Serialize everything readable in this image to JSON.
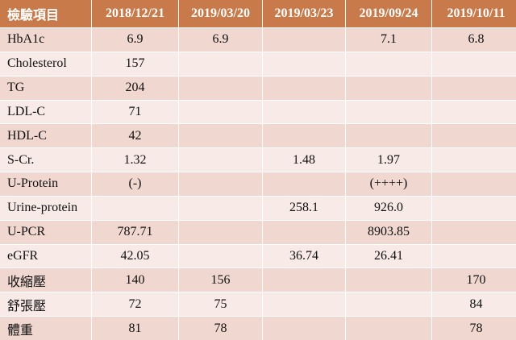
{
  "table": {
    "headers": [
      "檢驗項目",
      "2018/12/21",
      "2019/03/20",
      "2019/03/23",
      "2019/09/24",
      "2019/10/11"
    ],
    "rows": [
      {
        "label": "HbA1c",
        "values": [
          "6.9",
          "6.9",
          "",
          "7.1",
          "6.8"
        ]
      },
      {
        "label": "Cholesterol",
        "values": [
          "157",
          "",
          "",
          "",
          ""
        ]
      },
      {
        "label": "TG",
        "values": [
          "204",
          "",
          "",
          "",
          ""
        ]
      },
      {
        "label": "LDL-C",
        "values": [
          "71",
          "",
          "",
          "",
          ""
        ]
      },
      {
        "label": "HDL-C",
        "values": [
          "42",
          "",
          "",
          "",
          ""
        ]
      },
      {
        "label": "S-Cr.",
        "values": [
          "1.32",
          "",
          "1.48",
          "1.97",
          ""
        ]
      },
      {
        "label": "U-Protein",
        "values": [
          "(-)",
          "",
          "",
          "(++++)",
          ""
        ]
      },
      {
        "label": "Urine-protein",
        "values": [
          "",
          "",
          "258.1",
          "926.0",
          ""
        ]
      },
      {
        "label": "U-PCR",
        "values": [
          "787.71",
          "",
          "",
          "8903.85",
          ""
        ]
      },
      {
        "label": "eGFR",
        "values": [
          "42.05",
          "",
          "36.74",
          "26.41",
          ""
        ]
      },
      {
        "label": "收縮壓",
        "values": [
          "140",
          "156",
          "",
          "",
          "170"
        ]
      },
      {
        "label": "舒張壓",
        "values": [
          "72",
          "75",
          "",
          "",
          "84"
        ]
      },
      {
        "label": "體重",
        "values": [
          "81",
          "78",
          "",
          "",
          "78"
        ]
      }
    ]
  }
}
